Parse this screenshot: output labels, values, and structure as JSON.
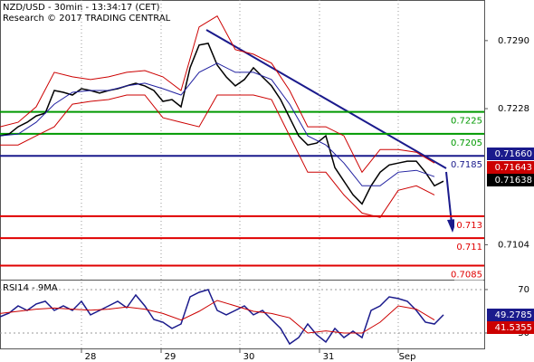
{
  "chart_data": [
    {
      "type": "line",
      "title": "NZD/USD - 30min - 13:34:17 (CET)",
      "subtitle": "Research © 2017 TRADING CENTRAL",
      "xlim": [
        0,
        535
      ],
      "ylim": [
        0.7073,
        0.7327
      ],
      "xticks": [
        {
          "value": 90,
          "label": "28"
        },
        {
          "value": 178,
          "label": "29"
        },
        {
          "value": 265,
          "label": "30"
        },
        {
          "value": 353,
          "label": "31"
        },
        {
          "value": 440,
          "label": "Sep"
        }
      ],
      "yticks": [
        {
          "value": 0.729,
          "label": "0.7290"
        },
        0.7228,
        0.7104
      ],
      "series": [
        {
          "name": "Price",
          "color": "#000000",
          "x": [
            0,
            10,
            20,
            30,
            40,
            50,
            60,
            70,
            80,
            90,
            100,
            110,
            120,
            130,
            140,
            150,
            160,
            170,
            180,
            190,
            200,
            210,
            220,
            230,
            240,
            250,
            260,
            270,
            280,
            290,
            300,
            310,
            320,
            330,
            340,
            350,
            360,
            370,
            380,
            390,
            400,
            410,
            420,
            430,
            440,
            450,
            460,
            470,
            480,
            490
          ],
          "values": [
            0.72032,
            0.72049,
            0.72115,
            0.72156,
            0.72214,
            0.72239,
            0.72445,
            0.72429,
            0.72404,
            0.72462,
            0.72445,
            0.72421,
            0.72445,
            0.72462,
            0.72487,
            0.72511,
            0.72487,
            0.72445,
            0.72346,
            0.72363,
            0.72297,
            0.72652,
            0.72859,
            0.72875,
            0.72677,
            0.72569,
            0.72487,
            0.72545,
            0.72652,
            0.72569,
            0.72487,
            0.72363,
            0.72197,
            0.72032,
            0.71949,
            0.71966,
            0.72032,
            0.71743,
            0.71619,
            0.71495,
            0.71412,
            0.71577,
            0.71701,
            0.71767,
            0.71784,
            0.71801,
            0.71801,
            0.71701,
            0.71577,
            0.71619
          ]
        },
        {
          "name": "Upper band",
          "color": "#cc0000",
          "x": [
            0,
            20,
            40,
            60,
            80,
            100,
            120,
            140,
            160,
            180,
            200,
            220,
            240,
            260,
            280,
            300,
            320,
            340,
            360,
            380,
            400,
            420,
            440,
            460,
            480
          ],
          "values": [
            0.72115,
            0.72156,
            0.72297,
            0.72611,
            0.7257,
            0.72545,
            0.7257,
            0.72611,
            0.72627,
            0.7257,
            0.72445,
            0.73024,
            0.73124,
            0.72818,
            0.72776,
            0.72694,
            0.72445,
            0.72115,
            0.72115,
            0.72032,
            0.71701,
            0.71908,
            0.71908,
            0.71883,
            0.71784
          ]
        },
        {
          "name": "Lower band",
          "color": "#cc0000",
          "x": [
            0,
            20,
            40,
            60,
            80,
            100,
            120,
            140,
            160,
            180,
            200,
            220,
            240,
            260,
            280,
            300,
            320,
            340,
            360,
            380,
            400,
            420,
            440,
            460,
            480
          ],
          "values": [
            0.71949,
            0.71949,
            0.72032,
            0.72115,
            0.72321,
            0.72346,
            0.72363,
            0.72404,
            0.72404,
            0.72197,
            0.72156,
            0.72115,
            0.72404,
            0.72404,
            0.72404,
            0.72363,
            0.72032,
            0.71701,
            0.71701,
            0.71494,
            0.71329,
            0.71288,
            0.71536,
            0.71577,
            0.71494
          ]
        },
        {
          "name": "Moving average",
          "color": "#2020a0",
          "x": [
            0,
            20,
            40,
            60,
            80,
            100,
            120,
            140,
            160,
            180,
            200,
            220,
            240,
            260,
            280,
            300,
            320,
            340,
            360,
            380,
            400,
            420,
            440,
            460,
            480
          ],
          "values": [
            0.72032,
            0.72048,
            0.72156,
            0.72321,
            0.72429,
            0.72445,
            0.72445,
            0.72487,
            0.72512,
            0.72462,
            0.72404,
            0.72611,
            0.72694,
            0.72611,
            0.72611,
            0.72545,
            0.72321,
            0.72032,
            0.71949,
            0.71784,
            0.71577,
            0.71577,
            0.71701,
            0.71718,
            0.7166
          ]
        }
      ],
      "levels": [
        {
          "value": 0.7225,
          "color": "#009900"
        },
        {
          "value": 0.7205,
          "color": "#009900"
        },
        {
          "value": 0.7185,
          "color": "#1a1a8c"
        },
        {
          "value": 0.713,
          "color": "#e00000"
        },
        {
          "value": 0.711,
          "color": "#e00000"
        },
        {
          "value": 0.7085,
          "color": "#e00000"
        }
      ],
      "last_values": [
        {
          "value": 0.7166,
          "label": "0.71660",
          "color": "#1a1a8c"
        },
        {
          "value": 0.71643,
          "color": "#cc0000"
        },
        {
          "value": 0.71638,
          "color": "#000000"
        }
      ]
    },
    {
      "type": "line",
      "title": "RSI14 - 9MA",
      "xlim": [
        0,
        535
      ],
      "ylim": [
        13.3,
        78.3
      ],
      "yticks": [
        70,
        30
      ],
      "series": [
        {
          "name": "RSI14",
          "color": "#1a1a8c",
          "x": [
            0,
            10,
            20,
            30,
            40,
            50,
            60,
            70,
            80,
            90,
            100,
            110,
            120,
            130,
            140,
            150,
            160,
            170,
            180,
            190,
            200,
            210,
            220,
            230,
            240,
            250,
            260,
            270,
            280,
            290,
            300,
            310,
            320,
            330,
            340,
            350,
            360,
            370,
            380,
            390,
            400,
            410,
            420,
            430,
            440,
            450,
            460,
            470,
            480,
            490
          ],
          "values": [
            45,
            48.3,
            55,
            50.8,
            56.7,
            59.2,
            50.8,
            55,
            50.8,
            59.2,
            46.7,
            50.8,
            55,
            59.2,
            53.3,
            65,
            55,
            42.5,
            40,
            34.2,
            38.3,
            63.3,
            67.5,
            70,
            50.8,
            46.7,
            50.8,
            55,
            46.7,
            50.8,
            42.5,
            34.2,
            20,
            25.8,
            38.3,
            28.3,
            21.7,
            34.2,
            25.8,
            31.7,
            25.8,
            50.8,
            55,
            63.3,
            61.7,
            59.2,
            50.8,
            40,
            38.3,
            46.7
          ]
        },
        {
          "name": "9MA",
          "color": "#cc0000",
          "x": [
            0,
            20,
            40,
            60,
            80,
            100,
            120,
            140,
            160,
            180,
            200,
            220,
            240,
            260,
            280,
            300,
            320,
            340,
            360,
            380,
            400,
            420,
            440,
            460,
            480
          ],
          "values": [
            48,
            50,
            52,
            53,
            52,
            51,
            52,
            54,
            52,
            48,
            42,
            50,
            60,
            55,
            50,
            48,
            44,
            30,
            32,
            30,
            30,
            40,
            55,
            52,
            42
          ]
        }
      ],
      "last_values": [
        {
          "value": 49.2785,
          "color": "#1a1a8c"
        },
        {
          "value": 41.5355,
          "color": "#cc0000"
        }
      ]
    }
  ]
}
